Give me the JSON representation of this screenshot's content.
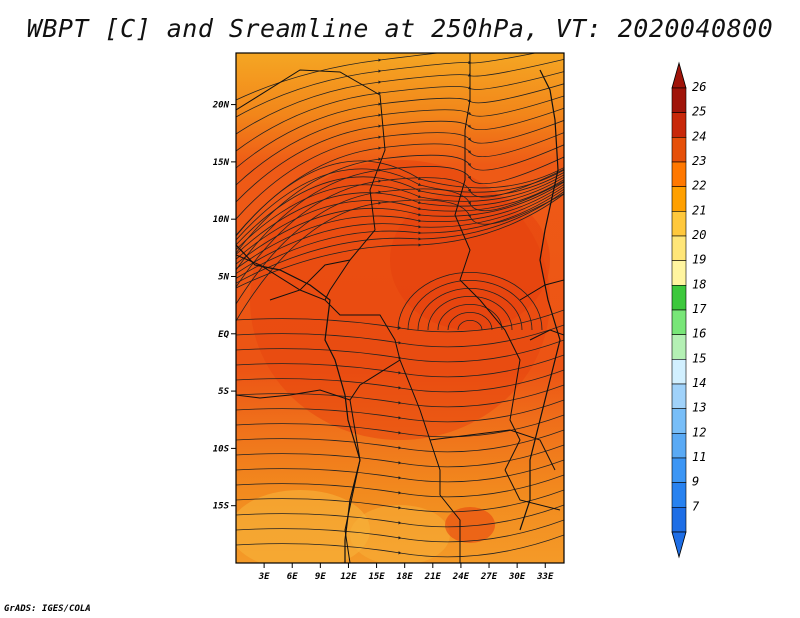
{
  "title": "WBPT [C] and Sreamline at 250hPa, VT: 2020040800",
  "credit": "GrADS: IGES/COLA",
  "map": {
    "lon_range": [
      0,
      35
    ],
    "lat_range": [
      -20,
      24.5
    ],
    "lon_ticks": [
      "3E",
      "6E",
      "9E",
      "12E",
      "15E",
      "18E",
      "21E",
      "24E",
      "27E",
      "30E",
      "33E"
    ],
    "lon_tick_values": [
      3,
      6,
      9,
      12,
      15,
      18,
      21,
      24,
      27,
      30,
      33
    ],
    "lat_ticks": [
      "20N",
      "15N",
      "10N",
      "5N",
      "EQ",
      "5S",
      "10S",
      "15S"
    ],
    "lat_tick_values": [
      20,
      15,
      10,
      5,
      0,
      -5,
      -10,
      -15
    ]
  },
  "colorbar": {
    "labels": [
      "7",
      "9",
      "11",
      "12",
      "13",
      "14",
      "15",
      "16",
      "17",
      "18",
      "19",
      "20",
      "21",
      "22",
      "23",
      "24",
      "25",
      "26"
    ],
    "colors": [
      "#1e6ee6",
      "#2882f0",
      "#3c96f5",
      "#5aaaf5",
      "#78bef8",
      "#a0d2fa",
      "#d2f0ff",
      "#b4f0b4",
      "#78e678",
      "#3cc83c",
      "#fff5a0",
      "#ffe678",
      "#ffc83c",
      "#ffa000",
      "#ff7800",
      "#e6500a",
      "#c8280a",
      "#a0140a"
    ]
  }
}
